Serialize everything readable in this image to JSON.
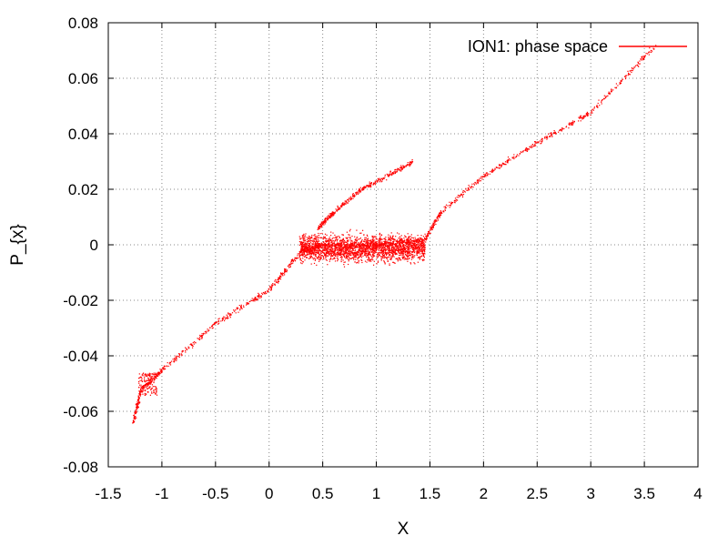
{
  "chart_data": {
    "type": "scatter",
    "title": "",
    "xlabel": "X",
    "ylabel": "P_{x}",
    "xlim": [
      -1.5,
      4
    ],
    "ylim": [
      -0.08,
      0.08
    ],
    "xticks": [
      -1.5,
      -1,
      -0.5,
      0,
      0.5,
      1,
      1.5,
      2,
      2.5,
      3,
      3.5,
      4
    ],
    "xtick_labels": [
      "-1.5",
      "-1",
      "-0.5",
      "0",
      "0.5",
      "1",
      "1.5",
      "2",
      "2.5",
      "3",
      "3.5",
      "4"
    ],
    "yticks": [
      -0.08,
      -0.06,
      -0.04,
      -0.02,
      0,
      0.02,
      0.04,
      0.06,
      0.08
    ],
    "ytick_labels": [
      "-0.08",
      "-0.06",
      "-0.04",
      "-0.02",
      "0",
      "0.02",
      "0.04",
      "0.06",
      "0.08"
    ],
    "grid": true,
    "grid_style": "dotted",
    "legend_position": "top-right",
    "series": [
      {
        "name": "ION1: phase space",
        "color": "#ff0000",
        "marker": "dot",
        "structure": {
          "main_branch": [
            [
              -1.27,
              -0.064
            ],
            [
              -1.2,
              -0.052
            ],
            [
              -1.0,
              -0.045
            ],
            [
              -0.5,
              -0.028
            ],
            [
              0.0,
              -0.016
            ],
            [
              0.3,
              -0.002
            ],
            [
              0.5,
              0.0
            ],
            [
              1.0,
              0.0
            ],
            [
              1.45,
              0.002
            ],
            [
              1.6,
              0.012
            ],
            [
              2.0,
              0.025
            ],
            [
              2.5,
              0.037
            ],
            [
              3.0,
              0.048
            ],
            [
              3.6,
              0.072
            ]
          ],
          "upper_branch": [
            [
              0.45,
              0.006
            ],
            [
              0.6,
              0.012
            ],
            [
              0.85,
              0.02
            ],
            [
              1.1,
              0.025
            ],
            [
              1.33,
              0.03
            ]
          ],
          "dense_core": {
            "x": [
              0.28,
              1.45
            ],
            "y": [
              -0.008,
              0.006
            ]
          },
          "left_cluster": {
            "x": [
              -1.22,
              -1.05
            ],
            "y": [
              -0.054,
              -0.046
            ]
          }
        }
      }
    ]
  }
}
